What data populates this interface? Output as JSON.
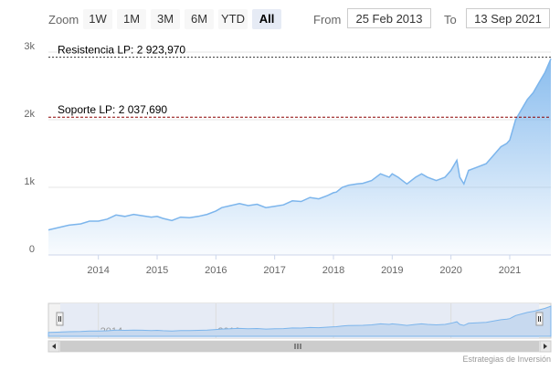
{
  "toolbar": {
    "zoom_label": "Zoom",
    "buttons": [
      "1W",
      "1M",
      "3M",
      "6M",
      "YTD",
      "All"
    ],
    "active_button": "All",
    "from_label": "From",
    "from_value": "25 Feb 2013",
    "to_label": "To",
    "to_value": "13 Sep 2021"
  },
  "credit": "Estrategias de Inversión",
  "colors": {
    "line": "#7cb5ec",
    "area_top": "#7cb5ec",
    "resistance": "#333333",
    "support": "#8b0000",
    "grid": "#e6e6e6"
  },
  "chart_data": {
    "type": "area",
    "x_ticks": [
      "2014",
      "2015",
      "2016",
      "2017",
      "2018",
      "2019",
      "2020",
      "2021"
    ],
    "y_ticks": [
      {
        "value": 0,
        "label": "0"
      },
      {
        "value": 1000,
        "label": "1k"
      },
      {
        "value": 2000,
        "label": "2k"
      },
      {
        "value": 3000,
        "label": "3k"
      }
    ],
    "ylim": [
      0,
      3000
    ],
    "xlim": [
      2013.15,
      2021.7
    ],
    "plot_lines": [
      {
        "label": "Resistencia LP: 2 923,970",
        "value": 2923.97,
        "style": "dotted"
      },
      {
        "label": "Soporte LP: 2 037,690",
        "value": 2037.69,
        "style": "dashed"
      }
    ],
    "series": [
      {
        "x": [
          2013.15,
          2013.3,
          2013.5,
          2013.7,
          2013.85,
          2014.0,
          2014.15,
          2014.3,
          2014.45,
          2014.6,
          2014.75,
          2014.9,
          2015.0,
          2015.1,
          2015.25,
          2015.4,
          2015.55,
          2015.7,
          2015.85,
          2016.0,
          2016.1,
          2016.25,
          2016.4,
          2016.55,
          2016.7,
          2016.85,
          2017.0,
          2017.15,
          2017.3,
          2017.45,
          2017.6,
          2017.75,
          2017.9,
          2018.0,
          2018.05,
          2018.15,
          2018.25,
          2018.4,
          2018.5,
          2018.65,
          2018.8,
          2018.95,
          2019.0,
          2019.1,
          2019.25,
          2019.4,
          2019.5,
          2019.6,
          2019.75,
          2019.9,
          2020.0,
          2020.1,
          2020.15,
          2020.22,
          2020.3,
          2020.45,
          2020.6,
          2020.75,
          2020.85,
          2020.95,
          2021.0,
          2021.05,
          2021.1,
          2021.2,
          2021.3,
          2021.4,
          2021.5,
          2021.6,
          2021.7
        ],
        "y": [
          370,
          400,
          440,
          460,
          500,
          500,
          530,
          590,
          570,
          600,
          580,
          560,
          570,
          540,
          510,
          560,
          550,
          570,
          600,
          650,
          700,
          730,
          760,
          730,
          750,
          700,
          720,
          740,
          800,
          790,
          850,
          830,
          880,
          920,
          930,
          1000,
          1030,
          1050,
          1060,
          1100,
          1200,
          1150,
          1200,
          1150,
          1050,
          1150,
          1200,
          1150,
          1100,
          1150,
          1250,
          1400,
          1150,
          1050,
          1250,
          1300,
          1350,
          1500,
          1600,
          1650,
          1700,
          1850,
          2000,
          2150,
          2300,
          2400,
          2550,
          2700,
          2900
        ]
      }
    ]
  }
}
